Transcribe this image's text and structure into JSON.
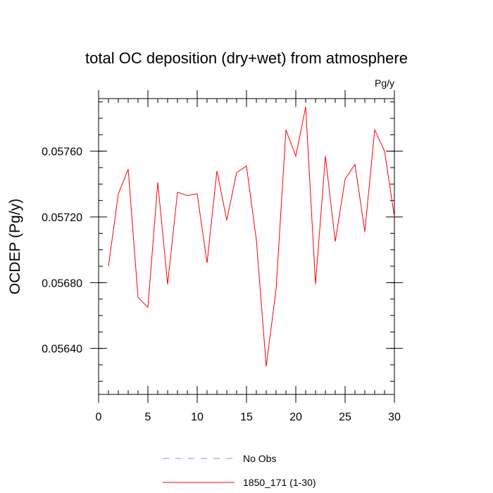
{
  "chart_data": {
    "type": "line",
    "title": "total OC deposition (dry+wet) from atmosphere",
    "units_label": "Pg/y",
    "xlabel": "",
    "ylabel": "OCDEP  (Pg/y)",
    "xlim": [
      0,
      30
    ],
    "ylim": [
      0.05612,
      0.05792
    ],
    "x_ticks": [
      0,
      5,
      10,
      15,
      20,
      25,
      30
    ],
    "x_tick_labels": [
      "0",
      "5",
      "10",
      "15",
      "20",
      "25",
      "30"
    ],
    "x_minor_step": 1,
    "y_ticks": [
      0.0564,
      0.0568,
      0.0572,
      0.0576
    ],
    "y_tick_labels": [
      "0.05640",
      "0.05680",
      "0.05720",
      "0.05760"
    ],
    "y_minor_step": 0.0001,
    "grid": false,
    "x": [
      1,
      2,
      3,
      4,
      5,
      6,
      7,
      8,
      9,
      10,
      11,
      12,
      13,
      14,
      15,
      16,
      17,
      18,
      19,
      20,
      21,
      22,
      23,
      24,
      25,
      26,
      27,
      28,
      29,
      30
    ],
    "series": [
      {
        "name": "1850_171 (1-30)",
        "color": "#ff0000",
        "values": [
          0.0569,
          0.05734,
          0.05749,
          0.05671,
          0.05665,
          0.05741,
          0.05679,
          0.05735,
          0.05733,
          0.05734,
          0.05692,
          0.05748,
          0.05718,
          0.05747,
          0.05751,
          0.05706,
          0.05629,
          0.05676,
          0.05773,
          0.05757,
          0.05787,
          0.05679,
          0.05757,
          0.05705,
          0.05743,
          0.05752,
          0.05711,
          0.05773,
          0.0576,
          0.0572
        ]
      }
    ],
    "legend": {
      "placement": "bottom-center",
      "entries": [
        {
          "label": "No Obs",
          "color": "#8a8ae6",
          "style": "dashed"
        },
        {
          "label": "1850_171 (1-30)",
          "color": "#ff0000",
          "style": "solid"
        }
      ]
    }
  }
}
